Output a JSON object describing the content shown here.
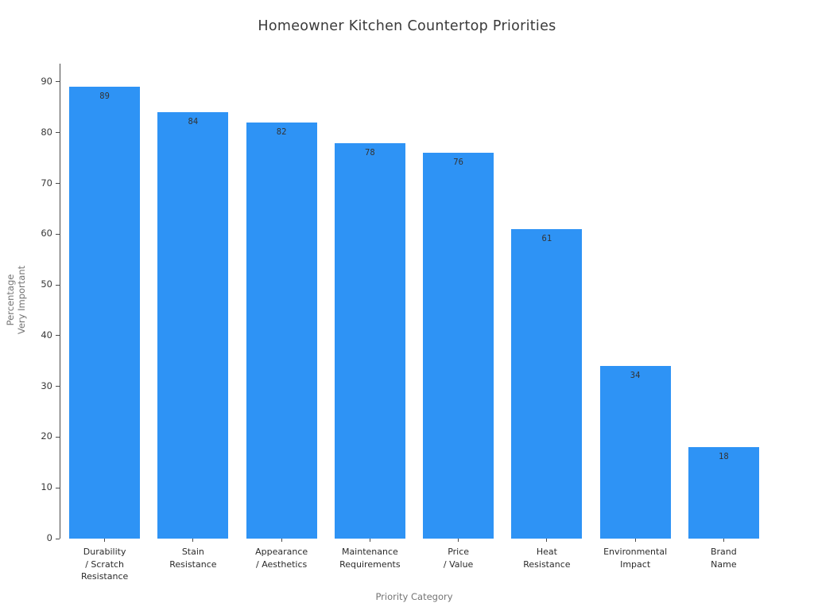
{
  "chart_data": {
    "type": "bar",
    "title": "Homeowner Kitchen Countertop Priorities",
    "xlabel": "Priority Category",
    "ylabel": "Percentage\nVery Important",
    "ylabel_lines": [
      "Percentage",
      "Very Important"
    ],
    "categories": [
      "Durability / Scratch Resistance",
      "Stain Resistance",
      "Appearance / Aesthetics",
      "Maintenance Requirements",
      "Price / Value",
      "Heat Resistance",
      "Environmental Impact",
      "Brand Name"
    ],
    "category_lines": [
      [
        "Durability",
        "/ Scratch",
        "Resistance"
      ],
      [
        "Stain",
        "Resistance"
      ],
      [
        "Appearance",
        "/ Aesthetics"
      ],
      [
        "Maintenance",
        "Requirements"
      ],
      [
        "Price",
        "/ Value"
      ],
      [
        "Heat",
        "Resistance"
      ],
      [
        "Environmental",
        "Impact"
      ],
      [
        "Brand",
        "Name"
      ]
    ],
    "values": [
      89,
      84,
      82,
      78,
      76,
      61,
      34,
      18
    ],
    "value_labels_shown": true,
    "yticks": [
      0,
      10,
      20,
      30,
      40,
      50,
      60,
      70,
      80,
      90
    ],
    "ylim": [
      0,
      93.6
    ],
    "grid": false,
    "legend": "none",
    "bar_color": "#2E93F5",
    "bar_value_label_color": "#333333",
    "title_color": "#3a3a3a",
    "axis_label_color": "#757575",
    "tick_label_color": "#3a3a3a"
  }
}
